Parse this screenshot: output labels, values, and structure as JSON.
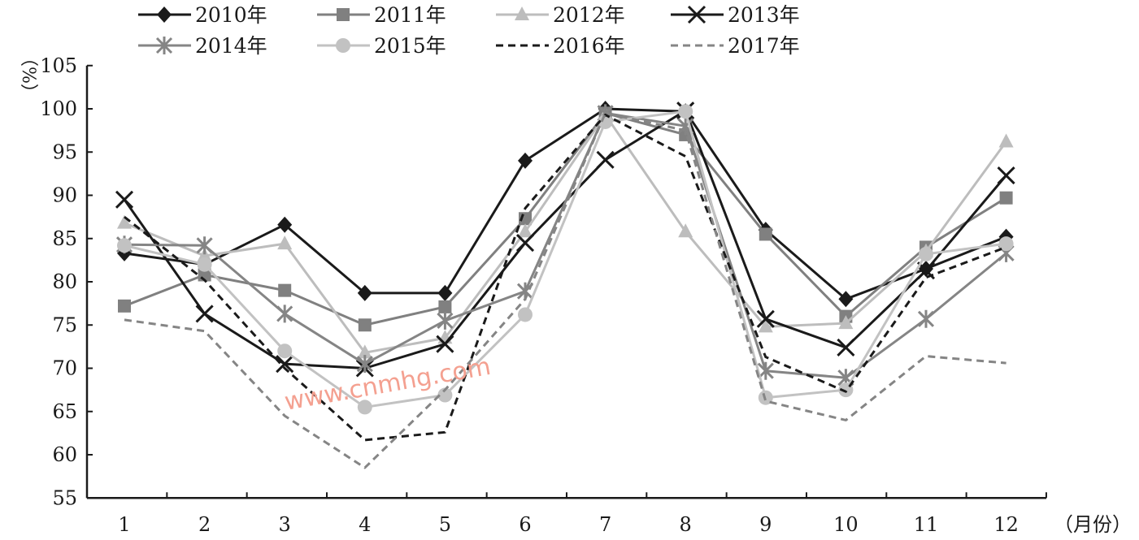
{
  "chart_data": {
    "type": "line",
    "title": "",
    "xlabel": "（月份）",
    "ylabel": "（%）",
    "x": [
      1,
      2,
      3,
      4,
      5,
      6,
      7,
      8,
      9,
      10,
      11,
      12
    ],
    "x_tick_labels": [
      "1",
      "2",
      "3",
      "4",
      "5",
      "6",
      "7",
      "8",
      "9",
      "10",
      "11",
      "12"
    ],
    "ylim": [
      55,
      105
    ],
    "y_ticks": [
      55,
      60,
      65,
      70,
      75,
      80,
      85,
      90,
      95,
      100,
      105
    ],
    "grid": false,
    "legend_position": "top",
    "watermark": "www.cnmhg.com",
    "series": [
      {
        "name": "2010年",
        "color": "#1a1a1a",
        "marker": "diamond",
        "dash": "solid",
        "values": [
          83.3,
          82.0,
          86.6,
          78.7,
          78.7,
          94.0,
          100.0,
          99.7,
          86.0,
          78.0,
          81.5,
          85.2
        ]
      },
      {
        "name": "2011年",
        "color": "#808080",
        "marker": "square",
        "dash": "solid",
        "values": [
          77.2,
          80.8,
          79.0,
          75.0,
          77.1,
          87.3,
          99.5,
          97.0,
          85.5,
          76.0,
          84.0,
          89.7
        ]
      },
      {
        "name": "2012年",
        "color": "#bdbdbd",
        "marker": "triangle",
        "dash": "solid",
        "values": [
          86.8,
          83.0,
          84.4,
          71.8,
          73.5,
          85.8,
          99.3,
          85.8,
          74.8,
          75.2,
          83.5,
          96.2
        ]
      },
      {
        "name": "2013年",
        "color": "#1a1a1a",
        "marker": "x",
        "dash": "solid",
        "values": [
          89.5,
          76.3,
          70.5,
          70.0,
          72.8,
          84.5,
          94.1,
          99.8,
          75.7,
          72.4,
          81.3,
          92.3
        ]
      },
      {
        "name": "2014年",
        "color": "#858585",
        "marker": "asterisk",
        "dash": "solid",
        "values": [
          84.3,
          84.2,
          76.3,
          70.5,
          75.5,
          78.9,
          99.5,
          98.0,
          69.7,
          68.9,
          75.7,
          83.3
        ]
      },
      {
        "name": "2015年",
        "color": "#c2c2c2",
        "marker": "circle",
        "dash": "solid",
        "values": [
          84.2,
          82.0,
          72.0,
          65.5,
          66.9,
          76.2,
          98.5,
          99.7,
          66.6,
          67.5,
          83.2,
          84.4
        ]
      },
      {
        "name": "2016年",
        "color": "#1a1a1a",
        "marker": "none",
        "dash": "dashed",
        "values": [
          87.5,
          80.2,
          70.0,
          61.7,
          62.6,
          88.5,
          99.3,
          94.5,
          71.3,
          67.3,
          80.5,
          84.0
        ]
      },
      {
        "name": "2017年",
        "color": "#858585",
        "marker": "none",
        "dash": "dashed",
        "values": [
          75.6,
          74.3,
          64.5,
          58.5,
          67.5,
          78.0,
          99.5,
          97.5,
          66.2,
          64.0,
          71.4,
          70.6
        ]
      }
    ]
  }
}
